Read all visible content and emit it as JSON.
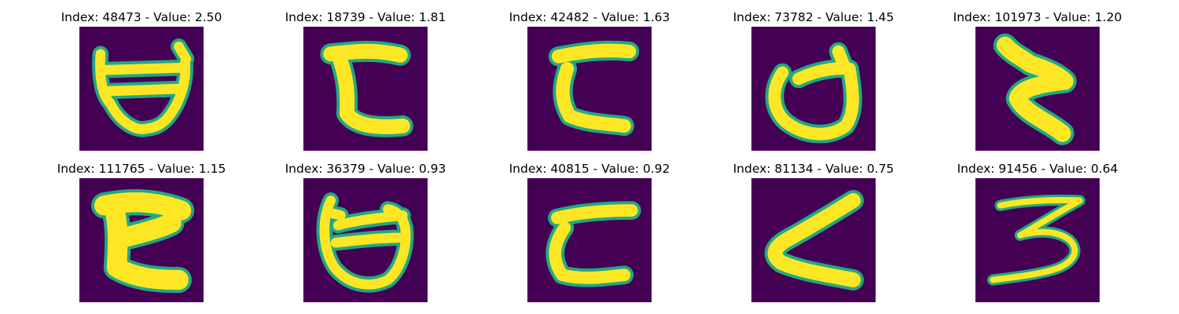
{
  "colors": {
    "background": "#440154",
    "foreground": "#fde725",
    "edge": "#22a884"
  },
  "panels": [
    {
      "title": "Index: 48473 - Value: 2.50",
      "glyph": "ぢ-like loop"
    },
    {
      "title": "Index: 18739 - Value: 1.81",
      "glyph": "て-like"
    },
    {
      "title": "Index: 42482 - Value: 1.63",
      "glyph": "こ-like"
    },
    {
      "title": "Index: 73782 - Value: 1.45",
      "glyph": "loop with hook"
    },
    {
      "title": "Index: 101973 - Value: 1.20",
      "glyph": "zigzag"
    },
    {
      "title": "Index: 111765 - Value: 1.15",
      "glyph": "て-like thick"
    },
    {
      "title": "Index: 36379 - Value: 0.93",
      "glyph": "loop"
    },
    {
      "title": "Index: 40815 - Value: 0.92",
      "glyph": "こ-like thin"
    },
    {
      "title": "Index: 81134 - Value: 0.75",
      "glyph": "く-like"
    },
    {
      "title": "Index: 91456 - Value: 0.64",
      "glyph": "ろ-like"
    }
  ]
}
